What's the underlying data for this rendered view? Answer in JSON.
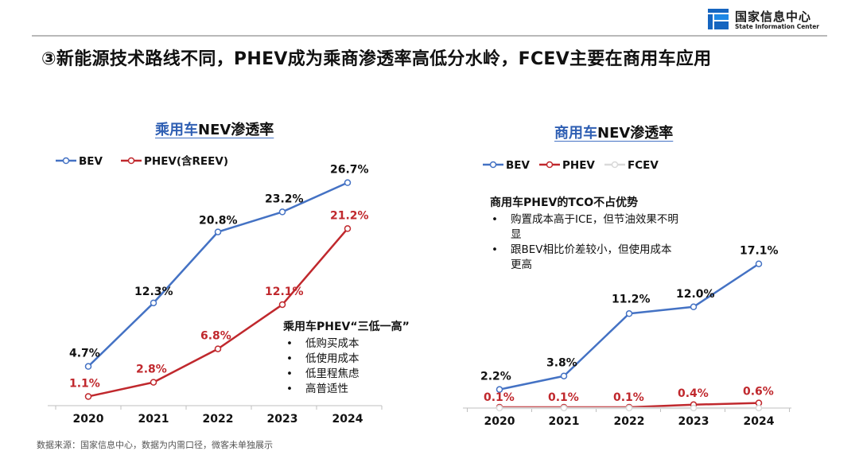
{
  "header": {
    "logo_cn": "国家信息中心",
    "logo_en": "State Information Center",
    "title": "③新能源技术路线不同，PHEV成为乘商渗透率高低分水岭，FCEV主要在商用车应用"
  },
  "panels": {
    "car": {
      "title_highlight": "乘用车",
      "title_rest": "NEV渗透率",
      "note_title": "乘用车PHEV“三低一高”",
      "note_items": [
        "低购买成本",
        "低使用成本",
        "低里程焦虑",
        "高普适性"
      ]
    },
    "commercial": {
      "title_highlight": "商用车",
      "title_rest": "NEV渗透率",
      "note_title": "商用车PHEV的TCO不占优势",
      "note_items": [
        "购置成本高于ICE，但节油效果不明显",
        "跟BEV相比价差较小，但使用成本更高"
      ]
    }
  },
  "source": "数据来源：国家信息中心，数据为内需口径，微客未单独展示",
  "colors": {
    "bev": "#4472c4",
    "phev": "#c0282d",
    "fcev": "#d9d9d9",
    "accent": "#2f5fb3"
  },
  "chart_data": [
    {
      "type": "line",
      "title": "乘用车NEV渗透率",
      "x": [
        "2020",
        "2021",
        "2022",
        "2023",
        "2024"
      ],
      "ylim": [
        0,
        30
      ],
      "legend": "top-left",
      "grid": false,
      "series": [
        {
          "name": "BEV",
          "color": "#4472c4",
          "values": [
            4.7,
            12.3,
            20.8,
            23.2,
            26.7
          ],
          "labels": [
            "4.7%",
            "12.3%",
            "20.8%",
            "23.2%",
            "26.7%"
          ]
        },
        {
          "name": "PHEV(含REEV)",
          "color": "#c0282d",
          "values": [
            1.1,
            2.8,
            6.8,
            12.1,
            21.2
          ],
          "labels": [
            "1.1%",
            "2.8%",
            "6.8%",
            "12.1%",
            "21.2%"
          ]
        }
      ]
    },
    {
      "type": "line",
      "title": "商用车NEV渗透率",
      "x": [
        "2020",
        "2021",
        "2022",
        "2023",
        "2024"
      ],
      "ylim": [
        0,
        30
      ],
      "legend": "top-left",
      "grid": false,
      "series": [
        {
          "name": "BEV",
          "color": "#4472c4",
          "values": [
            2.2,
            3.8,
            11.2,
            12.0,
            17.1
          ],
          "labels": [
            "2.2%",
            "3.8%",
            "11.2%",
            "12.0%",
            "17.1%"
          ]
        },
        {
          "name": "PHEV",
          "color": "#c0282d",
          "values": [
            0.1,
            0.1,
            0.1,
            0.4,
            0.6
          ],
          "labels": [
            "0.1%",
            "0.1%",
            "0.1%",
            "0.4%",
            "0.6%"
          ]
        },
        {
          "name": "FCEV",
          "color": "#d9d9d9",
          "values": [
            0.0,
            0.0,
            0.0,
            0.0,
            0.0
          ],
          "labels": []
        }
      ]
    }
  ]
}
